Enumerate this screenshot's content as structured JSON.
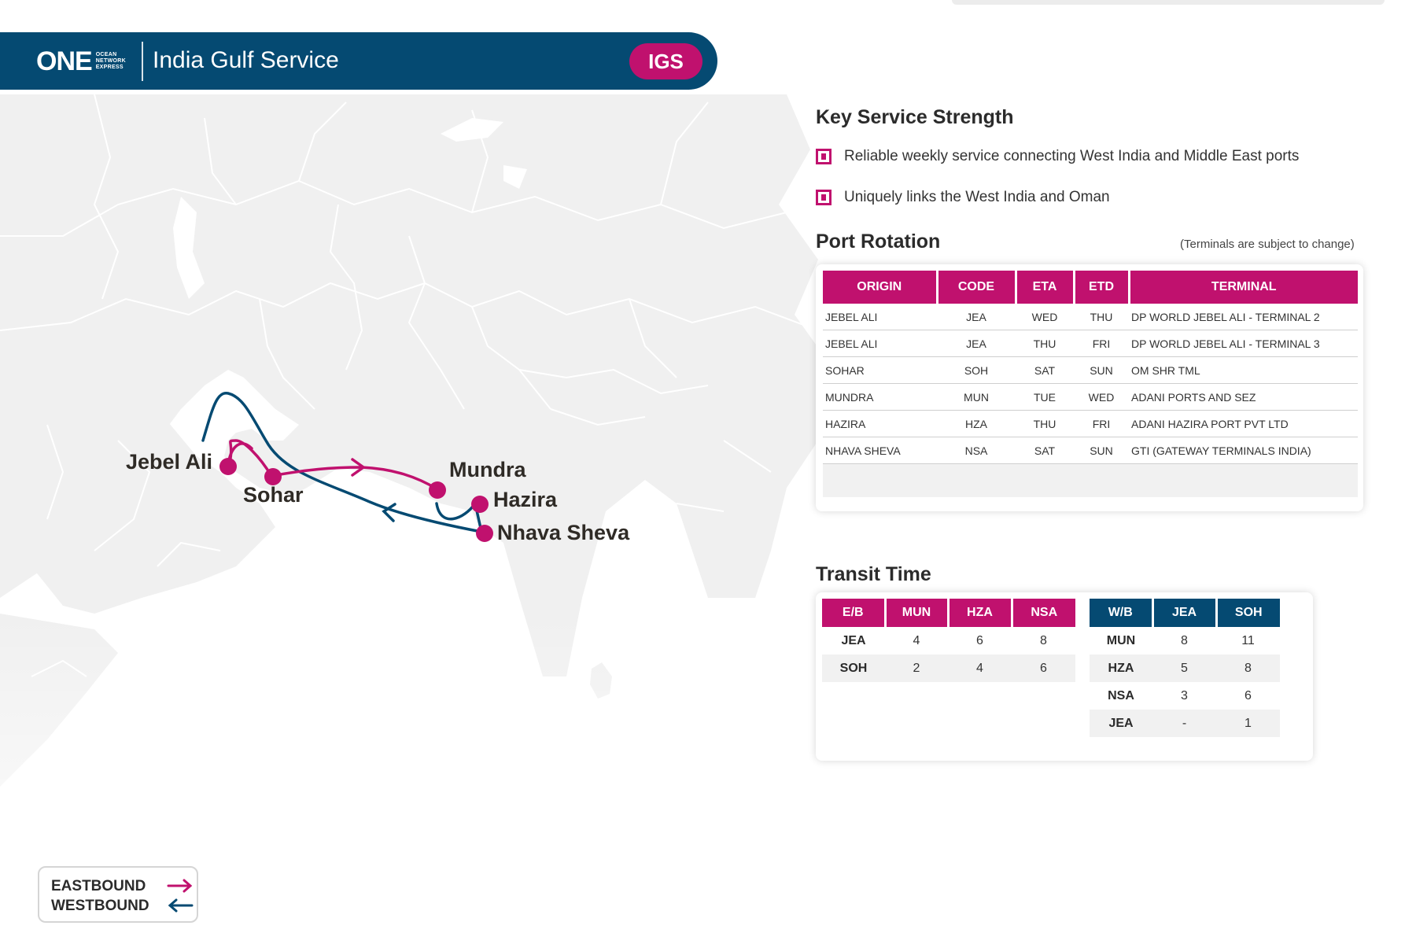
{
  "header": {
    "logo_main": "ONE",
    "logo_sub": [
      "OCEAN",
      "NETWORK",
      "EXPRESS"
    ],
    "title": "India Gulf Service",
    "badge": "IGS"
  },
  "map": {
    "colors": {
      "eastbound": "#c0116e",
      "westbound": "#054a72",
      "land": "#f0f0f0",
      "port_dot": "#c0116e"
    },
    "ports": [
      "Jebel Ali",
      "Sohar",
      "Mundra",
      "Hazira",
      "Nhava Sheva"
    ]
  },
  "legend": {
    "eastbound": "EASTBOUND",
    "westbound": "WESTBOUND"
  },
  "key_service": {
    "title": "Key Service Strength",
    "items": [
      "Reliable weekly service connecting West India and Middle East ports",
      "Uniquely links the West India and Oman"
    ]
  },
  "port_rotation": {
    "title": "Port Rotation",
    "note": "(Terminals are subject to change)",
    "headers": [
      "ORIGIN",
      "CODE",
      "ETA",
      "ETD",
      "TERMINAL"
    ],
    "rows": [
      [
        "JEBEL ALI",
        "JEA",
        "WED",
        "THU",
        "DP WORLD JEBEL ALI - TERMINAL 2"
      ],
      [
        "JEBEL ALI",
        "JEA",
        "THU",
        "FRI",
        "DP WORLD JEBEL ALI - TERMINAL 3"
      ],
      [
        "SOHAR",
        "SOH",
        "SAT",
        "SUN",
        "OM SHR TML"
      ],
      [
        "MUNDRA",
        "MUN",
        "TUE",
        "WED",
        "ADANI PORTS AND SEZ"
      ],
      [
        "HAZIRA",
        "HZA",
        "THU",
        "FRI",
        "ADANI HAZIRA PORT PVT LTD"
      ],
      [
        "NHAVA SHEVA",
        "NSA",
        "SAT",
        "SUN",
        "GTI (GATEWAY TERMINALS INDIA)"
      ]
    ]
  },
  "transit_time": {
    "title": "Transit Time",
    "eastbound": {
      "headers": [
        "E/B",
        "MUN",
        "HZA",
        "NSA"
      ],
      "rows": [
        [
          "JEA",
          "4",
          "6",
          "8"
        ],
        [
          "SOH",
          "2",
          "4",
          "6"
        ]
      ]
    },
    "westbound": {
      "headers": [
        "W/B",
        "JEA",
        "SOH"
      ],
      "rows": [
        [
          "MUN",
          "8",
          "11"
        ],
        [
          "HZA",
          "5",
          "8"
        ],
        [
          "NSA",
          "3",
          "6"
        ],
        [
          "JEA",
          "-",
          "1"
        ]
      ]
    }
  }
}
